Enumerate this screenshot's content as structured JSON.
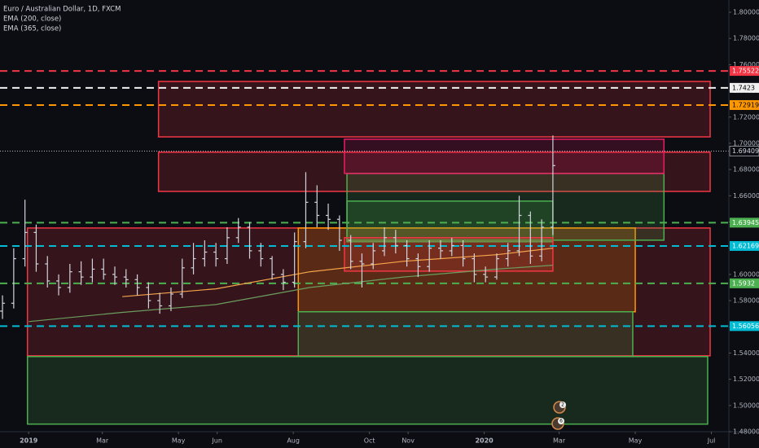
{
  "chart_data": {
    "type": "ohlc",
    "title": "Euro / Australian Dollar, 1D, FXCM",
    "indicators": [
      "EMA (200, close)",
      "EMA (365, close)"
    ],
    "xlim": [
      -23,
      561
    ],
    "ylim": [
      1.48,
      1.8
    ],
    "xticks": [
      {
        "value": 0,
        "label": "2019"
      },
      {
        "value": 59,
        "label": "Mar"
      },
      {
        "value": 120,
        "label": "May"
      },
      {
        "value": 151,
        "label": "Jun"
      },
      {
        "value": 212,
        "label": "Aug"
      },
      {
        "value": 273,
        "label": "Oct"
      },
      {
        "value": 304,
        "label": "Nov"
      },
      {
        "value": 365,
        "label": "2020"
      },
      {
        "value": 425,
        "label": "Mar"
      },
      {
        "value": 486,
        "label": "May"
      },
      {
        "value": 547,
        "label": "Jul"
      }
    ],
    "yticks": [
      {
        "value": 1.48,
        "label": "1.48000"
      },
      {
        "value": 1.5,
        "label": "1.50000"
      },
      {
        "value": 1.52,
        "label": "1.52000"
      },
      {
        "value": 1.54,
        "label": "1.54000"
      },
      {
        "value": 1.56,
        "label": "1.56000"
      },
      {
        "value": 1.58,
        "label": "1.58000"
      },
      {
        "value": 1.6,
        "label": "1.60000"
      },
      {
        "value": 1.62,
        "label": "1.62000"
      },
      {
        "value": 1.64,
        "label": "1.64000"
      },
      {
        "value": 1.66,
        "label": "1.66000"
      },
      {
        "value": 1.68,
        "label": "1.68000"
      },
      {
        "value": 1.7,
        "label": "1.70000"
      },
      {
        "value": 1.72,
        "label": "1.72000"
      },
      {
        "value": 1.74,
        "label": "1.74000"
      },
      {
        "value": 1.76,
        "label": "1.76000"
      },
      {
        "value": 1.78,
        "label": "1.78000"
      },
      {
        "value": 1.8,
        "label": "1.80000"
      }
    ],
    "bar_color": "#d1d4dc",
    "x": [
      -21,
      -12,
      -3,
      6,
      15,
      24,
      33,
      42,
      51,
      60,
      69,
      78,
      87,
      96,
      105,
      114,
      123,
      132,
      141,
      150,
      159,
      168,
      177,
      186,
      195,
      204,
      213,
      222,
      231,
      240,
      249,
      258,
      267,
      276,
      285,
      294,
      303,
      312,
      321,
      330,
      339,
      348,
      357,
      366,
      375,
      384,
      393,
      402,
      411,
      420
    ],
    "open": [
      1.572,
      1.578,
      1.612,
      1.632,
      1.608,
      1.595,
      1.59,
      1.602,
      1.598,
      1.604,
      1.6,
      1.598,
      1.596,
      1.59,
      1.58,
      1.576,
      1.585,
      1.605,
      1.612,
      1.617,
      1.612,
      1.628,
      1.636,
      1.618,
      1.612,
      1.6,
      1.594,
      1.625,
      1.655,
      1.645,
      1.642,
      1.626,
      1.61,
      1.608,
      1.618,
      1.628,
      1.622,
      1.612,
      1.606,
      1.62,
      1.618,
      1.622,
      1.612,
      1.6,
      1.598,
      1.612,
      1.618,
      1.645,
      1.614,
      1.636
    ],
    "high": [
      1.584,
      1.62,
      1.657,
      1.638,
      1.614,
      1.6,
      1.608,
      1.61,
      1.612,
      1.612,
      1.606,
      1.604,
      1.6,
      1.594,
      1.586,
      1.59,
      1.612,
      1.624,
      1.626,
      1.624,
      1.636,
      1.643,
      1.64,
      1.624,
      1.614,
      1.604,
      1.632,
      1.678,
      1.668,
      1.654,
      1.645,
      1.63,
      1.616,
      1.624,
      1.636,
      1.634,
      1.626,
      1.616,
      1.626,
      1.626,
      1.628,
      1.626,
      1.616,
      1.606,
      1.616,
      1.624,
      1.66,
      1.648,
      1.642,
      1.706
    ],
    "low": [
      1.566,
      1.574,
      1.606,
      1.602,
      1.59,
      1.584,
      1.586,
      1.592,
      1.594,
      1.596,
      1.592,
      1.59,
      1.584,
      1.574,
      1.57,
      1.572,
      1.582,
      1.6,
      1.606,
      1.606,
      1.608,
      1.624,
      1.612,
      1.606,
      1.596,
      1.588,
      1.59,
      1.62,
      1.636,
      1.634,
      1.618,
      1.604,
      1.59,
      1.604,
      1.614,
      1.616,
      1.606,
      1.598,
      1.602,
      1.612,
      1.614,
      1.606,
      1.594,
      1.594,
      1.596,
      1.606,
      1.614,
      1.608,
      1.61,
      1.63
    ],
    "close": [
      1.578,
      1.612,
      1.632,
      1.608,
      1.595,
      1.59,
      1.602,
      1.598,
      1.604,
      1.6,
      1.598,
      1.596,
      1.59,
      1.58,
      1.576,
      1.585,
      1.605,
      1.612,
      1.617,
      1.612,
      1.628,
      1.636,
      1.618,
      1.612,
      1.6,
      1.594,
      1.625,
      1.655,
      1.645,
      1.642,
      1.626,
      1.61,
      1.608,
      1.618,
      1.628,
      1.622,
      1.612,
      1.606,
      1.62,
      1.618,
      1.622,
      1.612,
      1.6,
      1.598,
      1.612,
      1.618,
      1.645,
      1.614,
      1.636,
      1.683
    ],
    "series": [
      {
        "name": "EMA (200, close)",
        "color": "#f5a54a",
        "x": [
          75,
          150,
          225,
          300,
          375,
          420
        ],
        "values": [
          1.583,
          1.589,
          1.602,
          1.61,
          1.615,
          1.62
        ]
      },
      {
        "name": "EMA (365, close)",
        "color": "#6b9e5e",
        "x": [
          0,
          75,
          150,
          225,
          300,
          375,
          420
        ],
        "values": [
          1.564,
          1.571,
          1.577,
          1.59,
          1.598,
          1.604,
          1.607
        ]
      }
    ],
    "last_price": 1.69409,
    "hlines": [
      {
        "value": 1.75522,
        "color": "#f23645"
      },
      {
        "value": 1.7423,
        "color": "#f0f0f0"
      },
      {
        "value": 1.72919,
        "color": "#ff9800"
      },
      {
        "value": 1.63945,
        "color": "#4caf50"
      },
      {
        "value": 1.62169,
        "color": "#00bcd4"
      },
      {
        "value": 1.5932,
        "color": "#4caf50"
      },
      {
        "value": 1.56056,
        "color": "#00bcd4"
      }
    ],
    "zones": [
      {
        "x": [
          104,
          546
        ],
        "y": [
          1.7472,
          1.7049
        ],
        "color": "#f23645"
      },
      {
        "x": [
          104,
          546
        ],
        "y": [
          1.6932,
          1.6633
        ],
        "color": "#f23645"
      },
      {
        "x": [
          -1,
          546
        ],
        "y": [
          1.6354,
          1.5379
        ],
        "color": "#f23645"
      },
      {
        "x": [
          -1,
          544
        ],
        "y": [
          1.5373,
          1.4858
        ],
        "color": "#4caf50"
      },
      {
        "x": [
          216,
          486
        ],
        "y": [
          1.6354,
          1.5715
        ],
        "color": "#ff9800"
      },
      {
        "x": [
          216,
          484
        ],
        "y": [
          1.5715,
          1.5373
        ],
        "color": "#4caf50"
      },
      {
        "x": [
          255,
          509
        ],
        "y": [
          1.677,
          1.6261
        ],
        "color": "#4caf50"
      },
      {
        "x": [
          255,
          420
        ],
        "y": [
          1.6559,
          1.6249
        ],
        "color": "#4caf50"
      },
      {
        "x": [
          253,
          420
        ],
        "y": [
          1.628,
          1.6025
        ],
        "color": "#f23645"
      },
      {
        "x": [
          253,
          509
        ],
        "y": [
          1.7031,
          1.677
        ],
        "color": "#e91e63"
      }
    ],
    "event_labels": [
      "2",
      "6"
    ]
  }
}
